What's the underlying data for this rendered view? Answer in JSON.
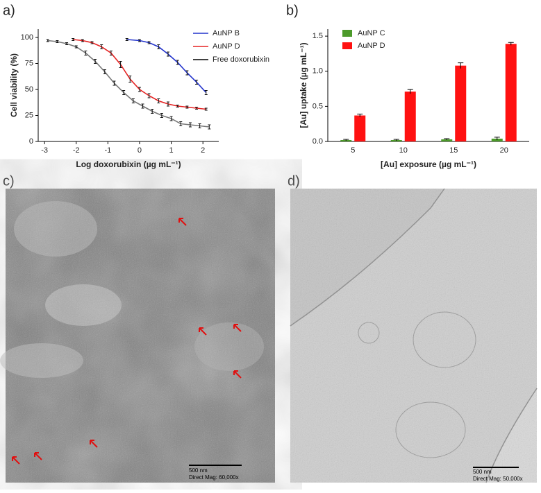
{
  "panels": [
    "a)",
    "b)",
    "c)",
    "d)"
  ],
  "micrographs": [
    {
      "scale_bar": "500 nm",
      "magnification": "Direct Mag: 60,000x"
    },
    {
      "scale_bar": "500 nm",
      "magnification": "Direct Mag: 50,000x"
    }
  ],
  "chart_data": [
    {
      "type": "line",
      "xlabel": "Log doxorubixin (µg mL⁻¹)",
      "ylabel": "Cell viability (%)",
      "xlim": [
        -3.2,
        2.5
      ],
      "xticks": [
        -3,
        -2,
        -1,
        0,
        1,
        2
      ],
      "ylim": [
        0,
        108
      ],
      "yticks": [
        0,
        25,
        50,
        75,
        100
      ],
      "legend": "upper right",
      "series": [
        {
          "name": "AuNP B",
          "color": "#2233cc",
          "x": [
            -0.4,
            0,
            0.3,
            0.6,
            0.9,
            1.2,
            1.5,
            1.8,
            2.1
          ],
          "values": [
            98,
            97,
            95,
            91,
            84,
            76,
            66,
            57,
            47
          ],
          "errors": [
            1,
            1,
            1,
            2,
            2,
            2,
            2,
            2,
            2
          ]
        },
        {
          "name": "AuNP D",
          "color": "#e52222",
          "x": [
            -2.1,
            -1.8,
            -1.5,
            -1.2,
            -0.9,
            -0.6,
            -0.3,
            0,
            0.3,
            0.6,
            0.9,
            1.2,
            1.5,
            1.8,
            2.1
          ],
          "values": [
            98,
            97,
            95,
            91,
            85,
            74,
            60,
            50,
            44,
            39,
            36,
            34,
            33,
            32,
            31
          ],
          "errors": [
            1,
            1,
            1,
            2,
            2,
            3,
            3,
            2,
            2,
            2,
            2,
            1,
            1,
            1,
            1
          ]
        },
        {
          "name": "Free doxorubixin",
          "color": "#777777",
          "x": [
            -2.9,
            -2.6,
            -2.3,
            -2.0,
            -1.7,
            -1.4,
            -1.1,
            -0.8,
            -0.5,
            -0.2,
            0.1,
            0.4,
            0.7,
            1.0,
            1.3,
            1.6,
            1.9,
            2.2
          ],
          "values": [
            97,
            96,
            94,
            91,
            85,
            77,
            67,
            56,
            47,
            39,
            34,
            29,
            25,
            22,
            17,
            16,
            15,
            14
          ],
          "errors": [
            1,
            1,
            1,
            1,
            2,
            2,
            2,
            2,
            2,
            2,
            2,
            2,
            2,
            2,
            2,
            2,
            2,
            2
          ]
        }
      ]
    },
    {
      "type": "bar",
      "xlabel": "[Au] exposure (µg mL⁻¹)",
      "ylabel": "[Au] uptake (µg mL⁻¹)",
      "categories": [
        "5",
        "10",
        "15",
        "20"
      ],
      "ylim": [
        0,
        1.6
      ],
      "yticks": [
        {
          "value": 0,
          "label": "0.0"
        },
        {
          "value": 0.5,
          "label": "0.5"
        },
        {
          "value": 1,
          "label": "1.0"
        },
        {
          "value": 1.5,
          "label": "1.5"
        }
      ],
      "legend": "upper left",
      "series": [
        {
          "name": "AuNP C",
          "color": "#4c9a2a",
          "values": [
            0.02,
            0.02,
            0.03,
            0.04
          ],
          "errors": [
            0.01,
            0.01,
            0.01,
            0.02
          ]
        },
        {
          "name": "AuNP D",
          "color": "#ff1111",
          "values": [
            0.37,
            0.71,
            1.08,
            1.39
          ],
          "errors": [
            0.02,
            0.03,
            0.04,
            0.02
          ]
        }
      ]
    }
  ]
}
